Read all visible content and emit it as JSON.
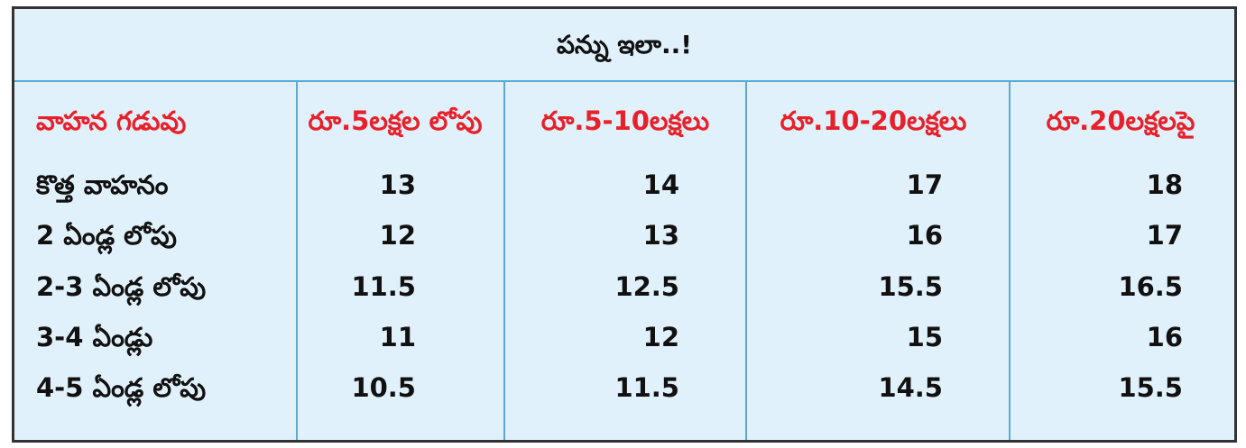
{
  "title": "పన్ను ఇలా..!",
  "table": {
    "header": [
      "వాహన గడువు",
      "రూ.5లక్షల లోపు",
      "రూ.5-10లక్షలు",
      "రూ.10-20లక్షలు",
      "రూ.20లక్షలపై"
    ],
    "rows": [
      [
        "కొత్త వాహనం",
        13,
        14,
        17,
        18
      ],
      [
        "2 ఏండ్ల లోపు",
        12,
        13,
        16,
        17
      ],
      [
        "2-3 ఏండ్ల లోపు",
        11.5,
        12.5,
        15.5,
        16.5
      ],
      [
        "3-4 ఏండ్లు",
        11,
        12,
        15,
        16
      ],
      [
        "4-5 ఏండ్ల లోపు",
        10.5,
        11.5,
        14.5,
        15.5
      ]
    ]
  }
}
